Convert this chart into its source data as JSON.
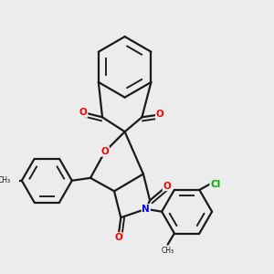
{
  "bg_color": "#ececec",
  "bond_color": "#1a1a1a",
  "bond_width": 1.6,
  "atom_colors": {
    "O": "#ff0000",
    "N": "#0000ff",
    "Cl": "#00aa00",
    "C": "#1a1a1a"
  },
  "fig_size": [
    3.0,
    3.0
  ],
  "dpi": 100
}
